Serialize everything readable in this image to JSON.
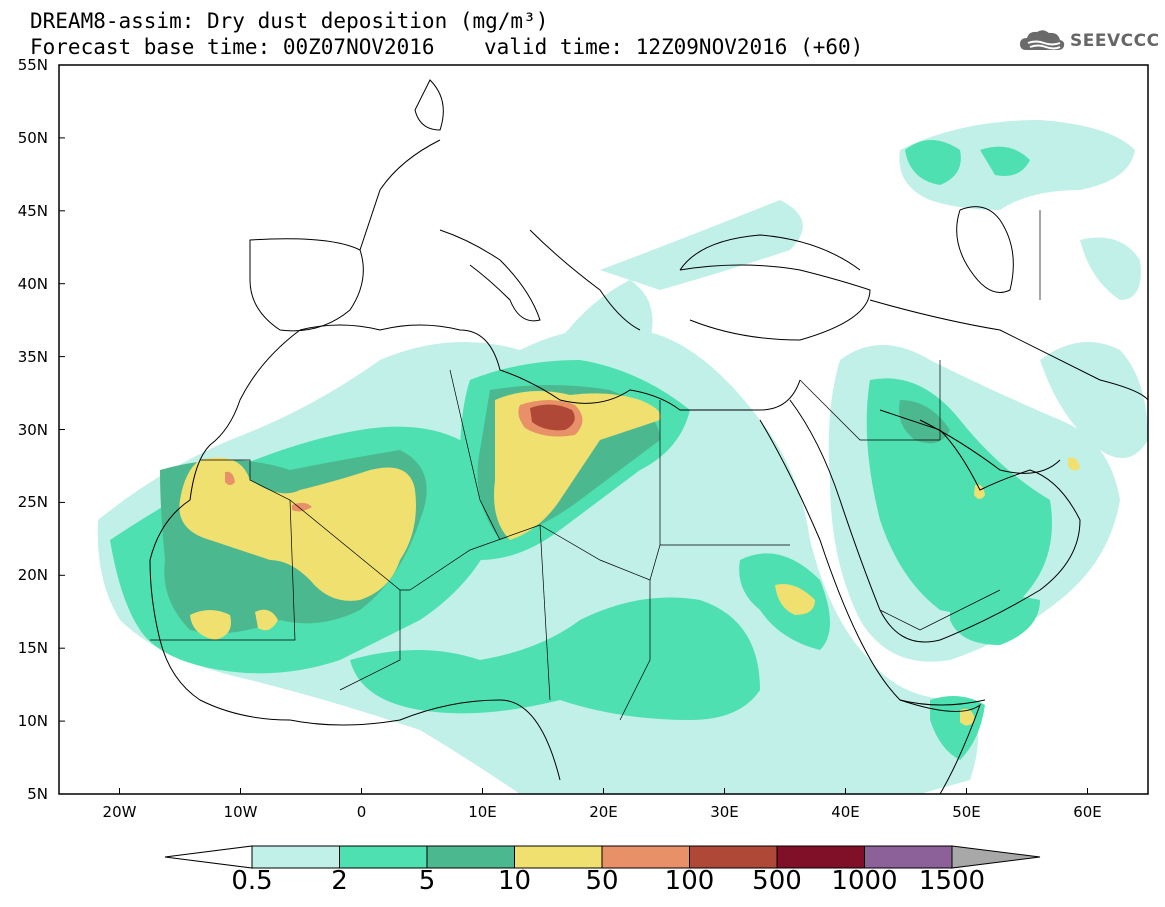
{
  "title": {
    "line1": "DREAM8-assim: Dry dust deposition (mg/m³)",
    "line2": "Forecast base time: 00Z07NOV2016",
    "valid": "valid time: 12Z09NOV2016 (+60)"
  },
  "logo": {
    "text": "SEEVCCC",
    "icon": "cloud-logo-icon"
  },
  "axes": {
    "lat_labels": [
      "55N",
      "50N",
      "45N",
      "40N",
      "35N",
      "30N",
      "25N",
      "20N",
      "15N",
      "10N",
      "5N"
    ],
    "lon_labels": [
      "20W",
      "10W",
      "0",
      "10E",
      "20E",
      "30E",
      "40E",
      "50E",
      "60E"
    ],
    "lon_range": [
      -25,
      65
    ],
    "lat_range": [
      5,
      55
    ]
  },
  "colorbar": {
    "labels": [
      "0.5",
      "2",
      "5",
      "10",
      "50",
      "100",
      "500",
      "1000",
      "1500"
    ],
    "colors": [
      "#c0f0e8",
      "#4ee0b0",
      "#4cb890",
      "#f0e070",
      "#e89068",
      "#b04838",
      "#801028",
      "#8c6098",
      "#a8a8a8"
    ]
  },
  "colors": {
    "ocean": "#ffffff",
    "border": "#000000",
    "low": "#c0f0e8",
    "mid": "#4ee0b0",
    "high": "#4cb890",
    "very_high": "#f0e070",
    "extreme": "#e89068",
    "peak": "#b04838"
  }
}
